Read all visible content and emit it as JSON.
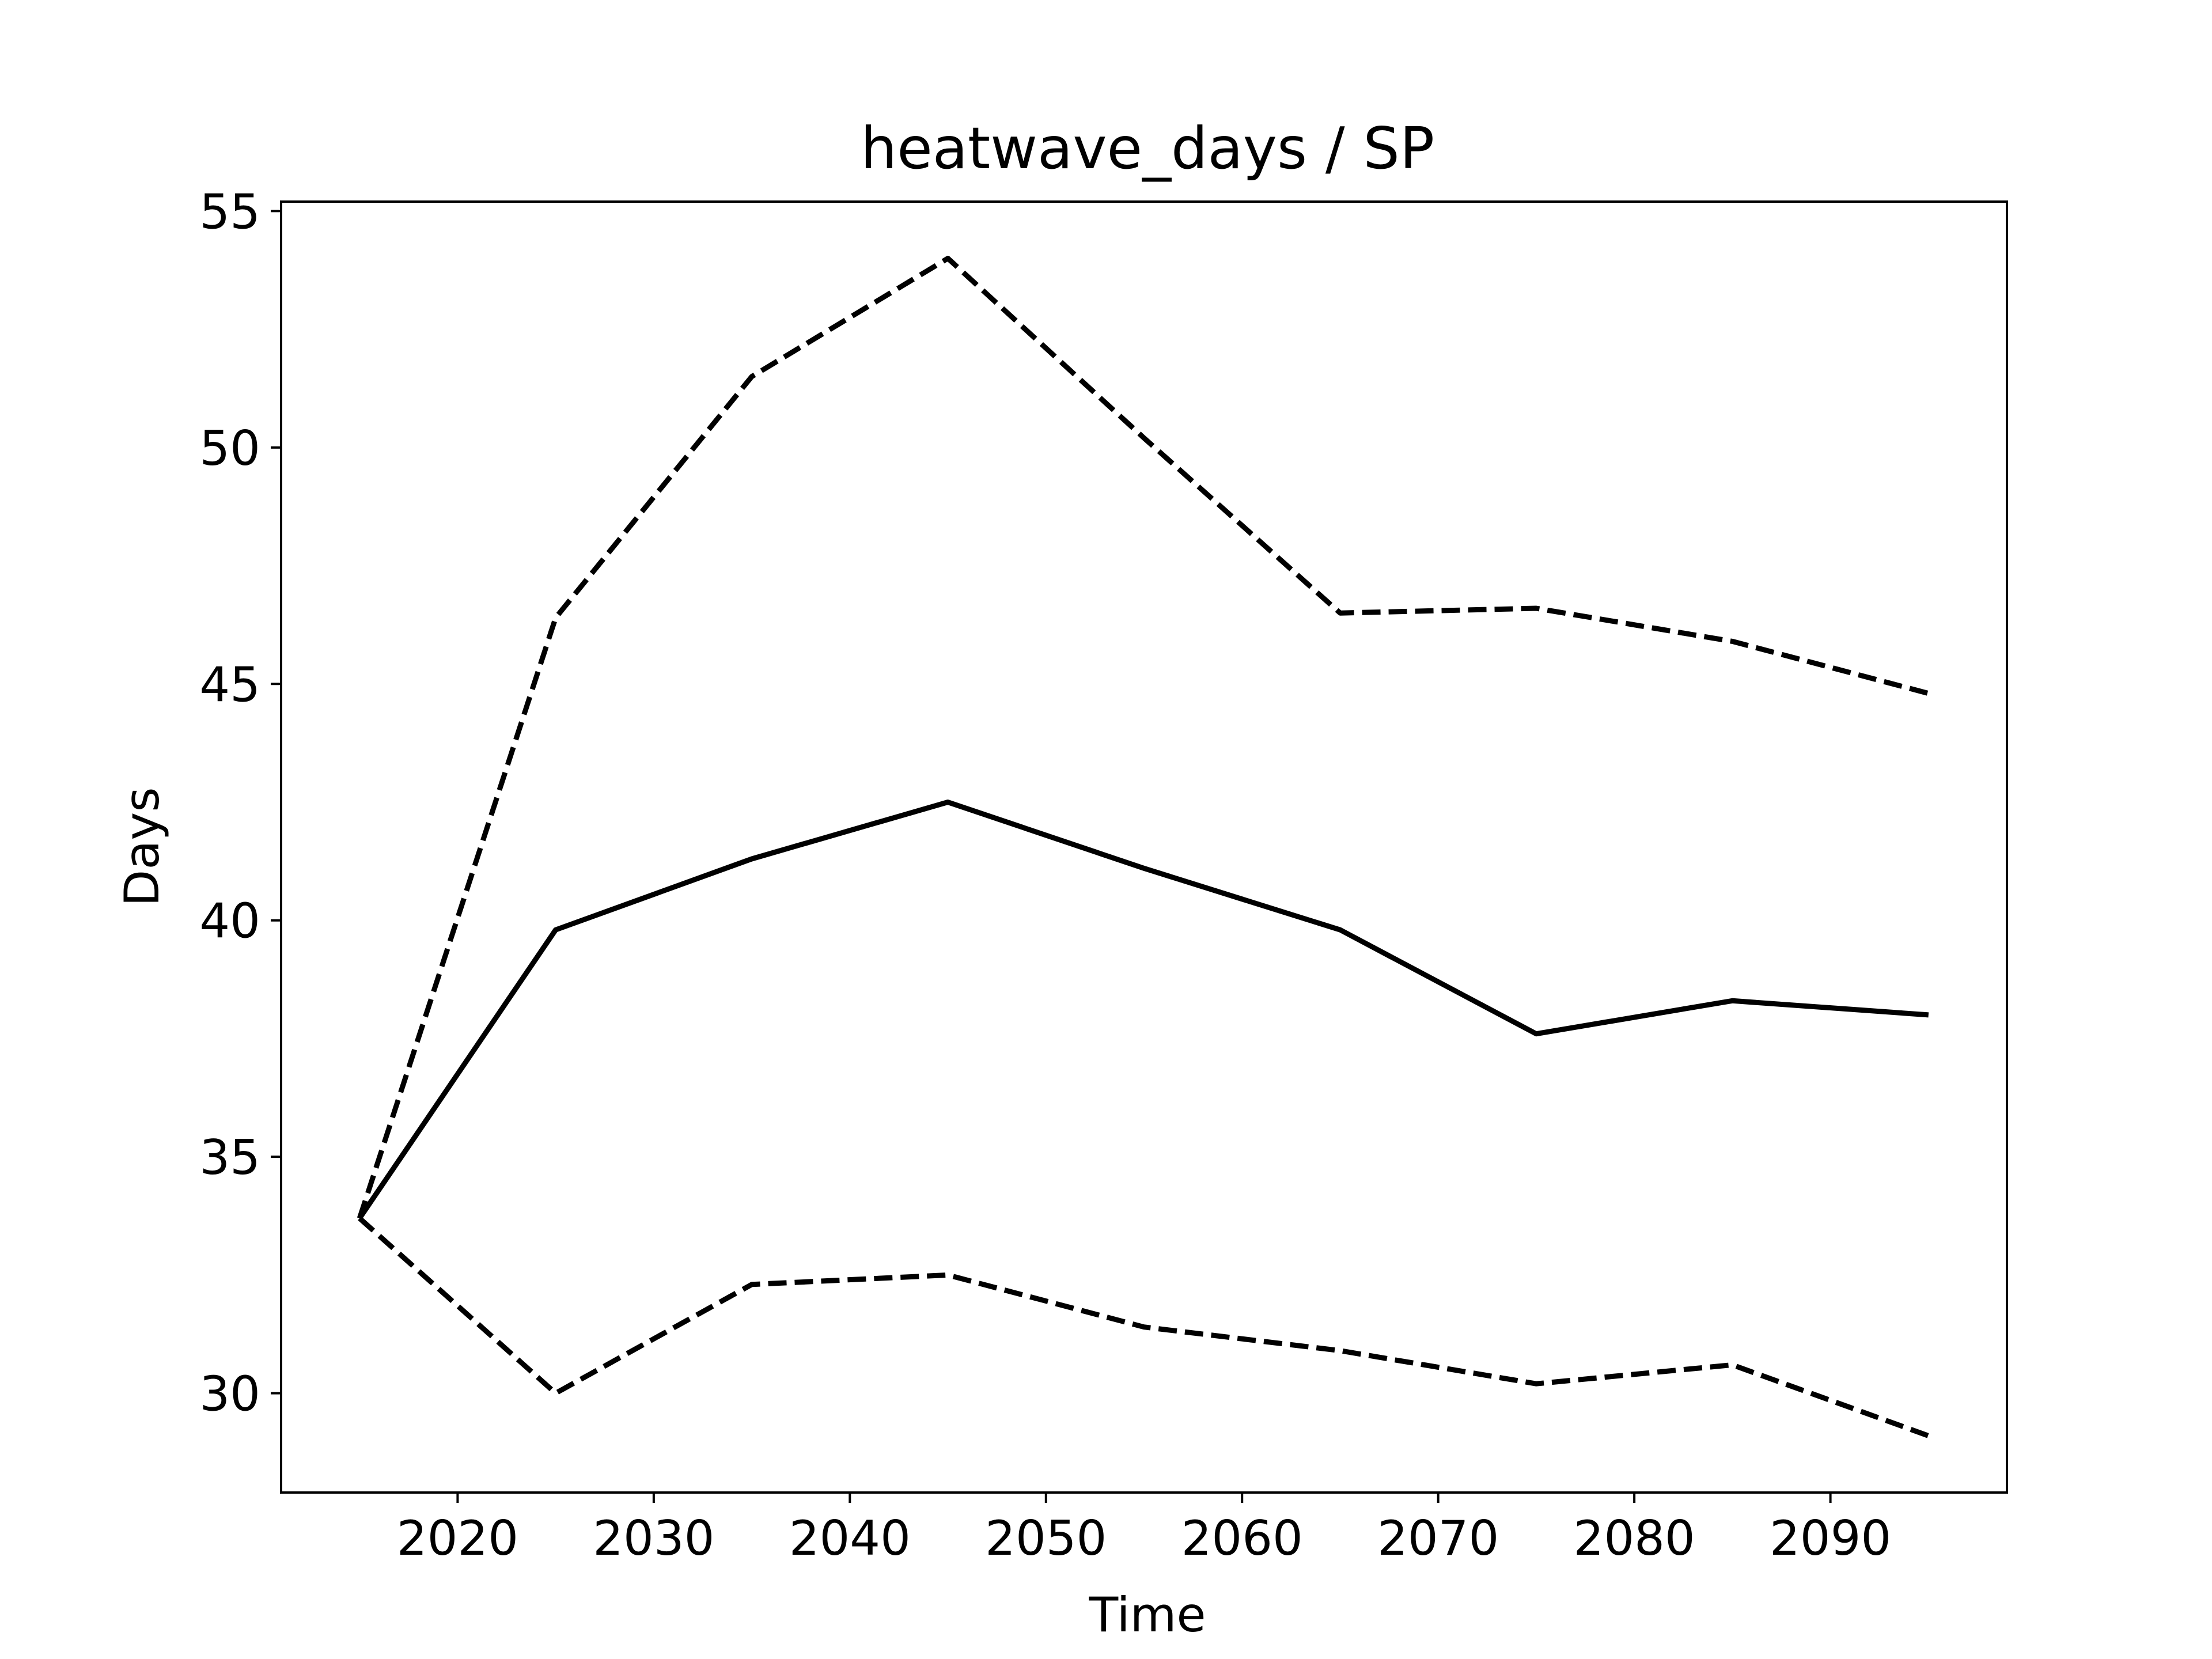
{
  "chart_data": {
    "type": "line",
    "title": "heatwave_days / SP",
    "xlabel": "Time",
    "ylabel": "Days",
    "x": [
      2015,
      2025,
      2035,
      2045,
      2055,
      2065,
      2075,
      2085,
      2095
    ],
    "xlim": [
      2011,
      2099
    ],
    "ylim": [
      27.9,
      55.2
    ],
    "xticks": [
      2020,
      2030,
      2040,
      2050,
      2060,
      2070,
      2080,
      2090
    ],
    "yticks": [
      30,
      35,
      40,
      45,
      50,
      55
    ],
    "grid": false,
    "series": [
      {
        "style": "solid",
        "color": "#000000",
        "values": [
          33.7,
          39.8,
          41.3,
          42.5,
          41.1,
          39.8,
          37.6,
          38.3,
          38.0
        ]
      },
      {
        "style": "dashed",
        "color": "#000000",
        "values": [
          33.7,
          46.4,
          51.5,
          54.0,
          50.2,
          46.5,
          46.6,
          45.9,
          44.8
        ]
      },
      {
        "style": "dashed",
        "color": "#000000",
        "values": [
          33.7,
          30.0,
          32.3,
          32.5,
          31.4,
          30.9,
          30.2,
          30.6,
          29.1
        ]
      }
    ]
  }
}
